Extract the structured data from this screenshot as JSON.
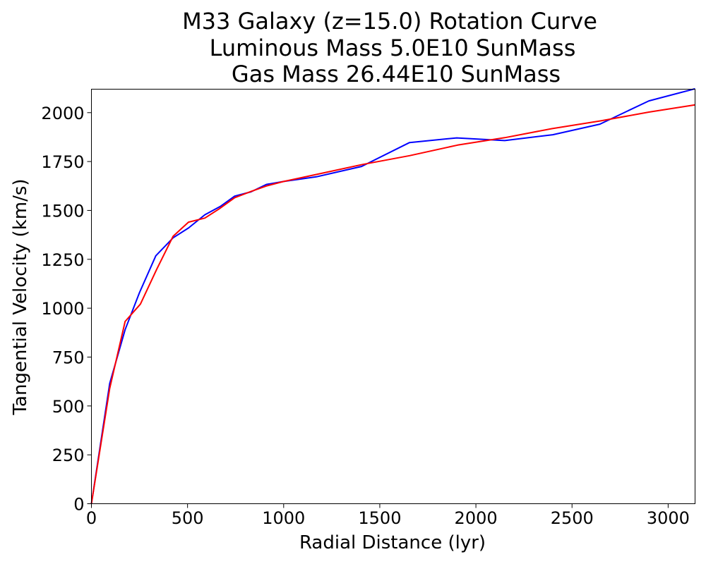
{
  "chart_data": {
    "type": "line",
    "title": [
      "M33 Galaxy (z=15.0) Rotation Curve",
      "Luminous Mass 5.0E10 SunMass",
      "Gas Mass 26.44E10 SunMass"
    ],
    "xlabel": "Radial Distance (lyr)",
    "ylabel": "Tangential Velocity (km/s)",
    "xlim": [
      0,
      3140
    ],
    "ylim": [
      0,
      2120
    ],
    "xticks": [
      0,
      500,
      1000,
      1500,
      2000,
      2500,
      3000
    ],
    "yticks": [
      0,
      250,
      500,
      750,
      1000,
      1250,
      1500,
      1750,
      2000
    ],
    "grid": false,
    "series": [
      {
        "color": "#0000ff",
        "x": [
          0,
          95,
          175,
          250,
          335,
          425,
          505,
          590,
          670,
          745,
          830,
          910,
          1000,
          1170,
          1405,
          1655,
          1900,
          2150,
          2400,
          2645,
          2900,
          3140
        ],
        "y": [
          0,
          615,
          890,
          1080,
          1268,
          1360,
          1410,
          1478,
          1520,
          1573,
          1595,
          1633,
          1648,
          1672,
          1725,
          1847,
          1871,
          1857,
          1887,
          1941,
          2060,
          2122
        ]
      },
      {
        "color": "#ff0000",
        "x": [
          0,
          95,
          175,
          255,
          340,
          425,
          505,
          590,
          665,
          745,
          830,
          910,
          1000,
          1180,
          1410,
          1655,
          1905,
          2150,
          2395,
          2650,
          2900,
          3140
        ],
        "y": [
          0,
          590,
          932,
          1021,
          1200,
          1368,
          1440,
          1461,
          1508,
          1565,
          1597,
          1625,
          1648,
          1686,
          1735,
          1780,
          1834,
          1872,
          1918,
          1958,
          2003,
          2040
        ]
      }
    ]
  }
}
